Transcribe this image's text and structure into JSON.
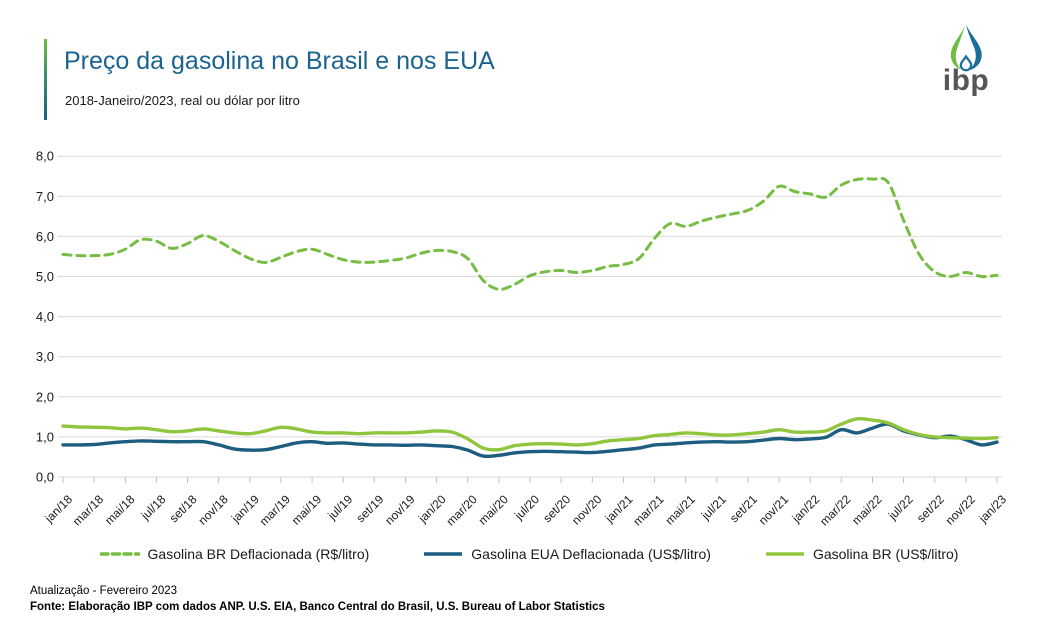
{
  "header": {
    "title": "Preço da gasolina no Brasil e nos EUA",
    "subtitle": "2018-Janeiro/2023, real ou dólar por litro"
  },
  "logo": {
    "text": "ibp",
    "leaf_green": "#6FBE44",
    "drop_blue": "#1C6E9B",
    "text_color": "#55565A"
  },
  "footer": {
    "update": "Atualização - Fevereiro 2023",
    "source": "Fonte: Elaboração IBP com dados ANP. U.S. EIA, Banco Central do Brasil, U.S. Bureau of Labor Statistics"
  },
  "colors": {
    "title_blue": "#1B6390",
    "grid": "#D9D9D9",
    "tick": "#C0C0C0",
    "axis_text": "#1a1a1a"
  },
  "chart_data": {
    "type": "line",
    "title": "Preço da gasolina no Brasil e nos EUA",
    "subtitle": "2018-Janeiro/2023, real ou dólar por litro",
    "ylim": [
      0,
      8
    ],
    "y_ticks": [
      0,
      1,
      2,
      3,
      4,
      5,
      6,
      7,
      8
    ],
    "y_tick_labels": [
      "0,0",
      "1,0",
      "2,0",
      "3,0",
      "4,0",
      "5,0",
      "6,0",
      "7,0",
      "8,0"
    ],
    "x_tick_every": 2,
    "x_tick_labels": [
      "jan/18",
      "mar/18",
      "mai/18",
      "jul/18",
      "set/18",
      "nov/18",
      "jan/19",
      "mar/19",
      "mai/19",
      "jul/19",
      "set/19",
      "nov/19",
      "jan/20",
      "mar/20",
      "mai/20",
      "jul/20",
      "set/20",
      "nov/20",
      "jan/21",
      "mar/21",
      "mai/21",
      "jul/21",
      "set/21",
      "nov/21",
      "jan/22",
      "mar/22",
      "mai/22",
      "jul/22",
      "set/22",
      "nov/22",
      "jan/23"
    ],
    "grid": true,
    "legend_position": "bottom",
    "series": [
      {
        "name": "Gasolina BR Deflacionada (R$/litro)",
        "color": "#77BD43",
        "style": "dashed",
        "values": [
          5.55,
          5.52,
          5.52,
          5.55,
          5.68,
          5.92,
          5.88,
          5.7,
          5.82,
          6.02,
          5.88,
          5.65,
          5.45,
          5.35,
          5.48,
          5.62,
          5.68,
          5.55,
          5.42,
          5.36,
          5.36,
          5.4,
          5.46,
          5.58,
          5.65,
          5.62,
          5.45,
          4.9,
          4.68,
          4.8,
          5.02,
          5.12,
          5.15,
          5.1,
          5.15,
          5.25,
          5.3,
          5.45,
          5.95,
          6.32,
          6.25,
          6.38,
          6.48,
          6.56,
          6.65,
          6.88,
          7.25,
          7.12,
          7.06,
          6.98,
          7.28,
          7.42,
          7.43,
          7.35,
          6.4,
          5.55,
          5.12,
          5.0,
          5.1,
          5.0,
          5.03
        ]
      },
      {
        "name": "Gasolina EUA Deflacionada (US$/litro)",
        "color": "#1C5D80",
        "style": "solid",
        "values": [
          0.8,
          0.8,
          0.81,
          0.85,
          0.88,
          0.9,
          0.89,
          0.88,
          0.88,
          0.88,
          0.8,
          0.7,
          0.67,
          0.68,
          0.76,
          0.85,
          0.88,
          0.84,
          0.85,
          0.82,
          0.8,
          0.8,
          0.79,
          0.8,
          0.78,
          0.76,
          0.67,
          0.52,
          0.54,
          0.6,
          0.63,
          0.64,
          0.63,
          0.62,
          0.61,
          0.64,
          0.68,
          0.72,
          0.8,
          0.82,
          0.85,
          0.87,
          0.88,
          0.87,
          0.88,
          0.92,
          0.96,
          0.93,
          0.95,
          0.99,
          1.18,
          1.1,
          1.22,
          1.32,
          1.15,
          1.05,
          0.98,
          1.02,
          0.93,
          0.8,
          0.87
        ]
      },
      {
        "name": "Gasolina BR (US$/litro)",
        "color": "#8FC63E",
        "style": "solid",
        "values": [
          1.27,
          1.25,
          1.24,
          1.23,
          1.2,
          1.22,
          1.18,
          1.13,
          1.15,
          1.2,
          1.15,
          1.1,
          1.08,
          1.15,
          1.24,
          1.2,
          1.12,
          1.1,
          1.1,
          1.08,
          1.1,
          1.1,
          1.1,
          1.12,
          1.15,
          1.12,
          0.95,
          0.72,
          0.68,
          0.78,
          0.82,
          0.83,
          0.82,
          0.8,
          0.83,
          0.9,
          0.93,
          0.96,
          1.03,
          1.06,
          1.1,
          1.08,
          1.05,
          1.05,
          1.08,
          1.12,
          1.18,
          1.12,
          1.12,
          1.15,
          1.32,
          1.45,
          1.42,
          1.35,
          1.18,
          1.06,
          1.0,
          0.98,
          0.97,
          0.96,
          0.98
        ]
      }
    ]
  }
}
